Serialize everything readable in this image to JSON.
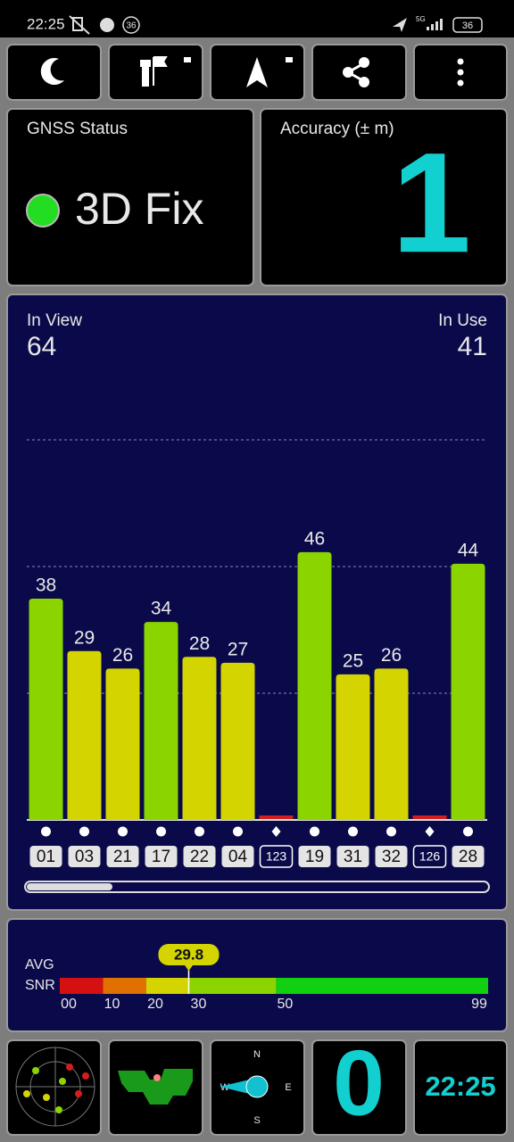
{
  "status_bar": {
    "time": "22:25",
    "badge": "36",
    "network": "5G",
    "battery": "36"
  },
  "gnss_status": {
    "title": "GNSS Status",
    "fix": "3D Fix"
  },
  "accuracy": {
    "title": "Accuracy (± m)",
    "value": "1"
  },
  "satellites": {
    "in_view_label": "In View",
    "in_view": 64,
    "in_use_label": "In Use",
    "in_use": 41,
    "ylim": [
      0,
      80
    ],
    "items": [
      {
        "id": "01",
        "snr": 38,
        "color": "#8bd400",
        "shape": "dot"
      },
      {
        "id": "03",
        "snr": 29,
        "color": "#d4d400",
        "shape": "dot"
      },
      {
        "id": "21",
        "snr": 26,
        "color": "#d4d400",
        "shape": "dot"
      },
      {
        "id": "17",
        "snr": 34,
        "color": "#8bd400",
        "shape": "dot"
      },
      {
        "id": "22",
        "snr": 28,
        "color": "#d4d400",
        "shape": "dot"
      },
      {
        "id": "04",
        "snr": 27,
        "color": "#d4d400",
        "shape": "dot"
      },
      {
        "id": "123",
        "snr": null,
        "color": "#d21e1e",
        "shape": "diamond"
      },
      {
        "id": "19",
        "snr": 46,
        "color": "#8bd400",
        "shape": "dot"
      },
      {
        "id": "31",
        "snr": 25,
        "color": "#d4d400",
        "shape": "dot"
      },
      {
        "id": "32",
        "snr": 26,
        "color": "#d4d400",
        "shape": "dot"
      },
      {
        "id": "126",
        "snr": null,
        "color": "#d21e1e",
        "shape": "diamond"
      },
      {
        "id": "28",
        "snr": 44,
        "color": "#8bd400",
        "shape": "dot"
      }
    ]
  },
  "snr": {
    "label_1": "AVG",
    "label_2": "SNR",
    "average": 29.8,
    "xlim": [
      0,
      99
    ],
    "ticks": [
      {
        "value": 0,
        "label": "00"
      },
      10,
      20,
      30,
      50,
      99
    ],
    "segments": [
      {
        "from": 0,
        "to": 10,
        "color": "#d41010"
      },
      {
        "from": 10,
        "to": 20,
        "color": "#e07000"
      },
      {
        "from": 20,
        "to": 30,
        "color": "#d4d400"
      },
      {
        "from": 30,
        "to": 50,
        "color": "#8bd400"
      },
      {
        "from": 50,
        "to": 99,
        "color": "#10d010"
      }
    ]
  },
  "compass": {
    "n": "N",
    "e": "E",
    "s": "S",
    "w": "W"
  },
  "speed": "0",
  "clock": "22:25"
}
